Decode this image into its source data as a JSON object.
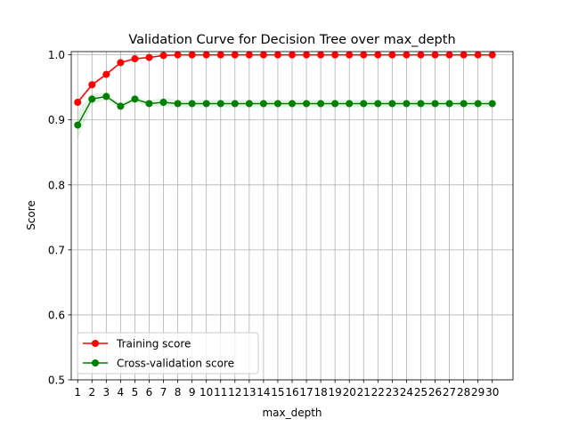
{
  "chart_data": {
    "type": "line",
    "title": "Validation Curve for Decision Tree over max_depth",
    "xlabel": "max_depth",
    "ylabel": "Score",
    "x": [
      1,
      2,
      3,
      4,
      5,
      6,
      7,
      8,
      9,
      10,
      11,
      12,
      13,
      14,
      15,
      16,
      17,
      18,
      19,
      20,
      21,
      22,
      23,
      24,
      25,
      26,
      27,
      28,
      29,
      30
    ],
    "xticks": [
      "1",
      "2",
      "3",
      "4",
      "5",
      "6",
      "7",
      "8",
      "9",
      "10",
      "11",
      "12",
      "13",
      "14",
      "15",
      "16",
      "17",
      "18",
      "19",
      "20",
      "21",
      "22",
      "23",
      "24",
      "25",
      "26",
      "27",
      "28",
      "29",
      "30"
    ],
    "ylim": [
      0.5,
      1.005
    ],
    "yticks": [
      "0.5",
      "0.6",
      "0.7",
      "0.8",
      "0.9",
      "1.0"
    ],
    "grid": true,
    "legend_position": "lower-left",
    "series": [
      {
        "name": "Training score",
        "color": "#ff0000",
        "marker": "circle",
        "values": [
          0.927,
          0.954,
          0.97,
          0.988,
          0.994,
          0.996,
          0.999,
          1.0,
          1.0,
          1.0,
          1.0,
          1.0,
          1.0,
          1.0,
          1.0,
          1.0,
          1.0,
          1.0,
          1.0,
          1.0,
          1.0,
          1.0,
          1.0,
          1.0,
          1.0,
          1.0,
          1.0,
          1.0,
          1.0,
          1.0
        ],
        "std": [
          0.003,
          0.003,
          0.003,
          0.002,
          0.002,
          0.001,
          0.001,
          0,
          0,
          0,
          0,
          0,
          0,
          0,
          0,
          0,
          0,
          0,
          0,
          0,
          0,
          0,
          0,
          0,
          0,
          0,
          0,
          0,
          0,
          0
        ]
      },
      {
        "name": "Cross-validation score",
        "color": "#008000",
        "marker": "circle",
        "values": [
          0.892,
          0.932,
          0.936,
          0.921,
          0.932,
          0.925,
          0.927,
          0.925,
          0.925,
          0.925,
          0.925,
          0.925,
          0.925,
          0.925,
          0.925,
          0.925,
          0.925,
          0.925,
          0.925,
          0.925,
          0.925,
          0.925,
          0.925,
          0.925,
          0.925,
          0.925,
          0.925,
          0.925,
          0.925,
          0.925
        ],
        "std": [
          0.022,
          0.008,
          0.006,
          0.004,
          0.004,
          0.005,
          0.007,
          0.006,
          0.006,
          0.006,
          0.006,
          0.006,
          0.006,
          0.006,
          0.006,
          0.006,
          0.006,
          0.006,
          0.006,
          0.006,
          0.006,
          0.006,
          0.006,
          0.006,
          0.006,
          0.006,
          0.006,
          0.006,
          0.006,
          0.006
        ]
      }
    ]
  }
}
